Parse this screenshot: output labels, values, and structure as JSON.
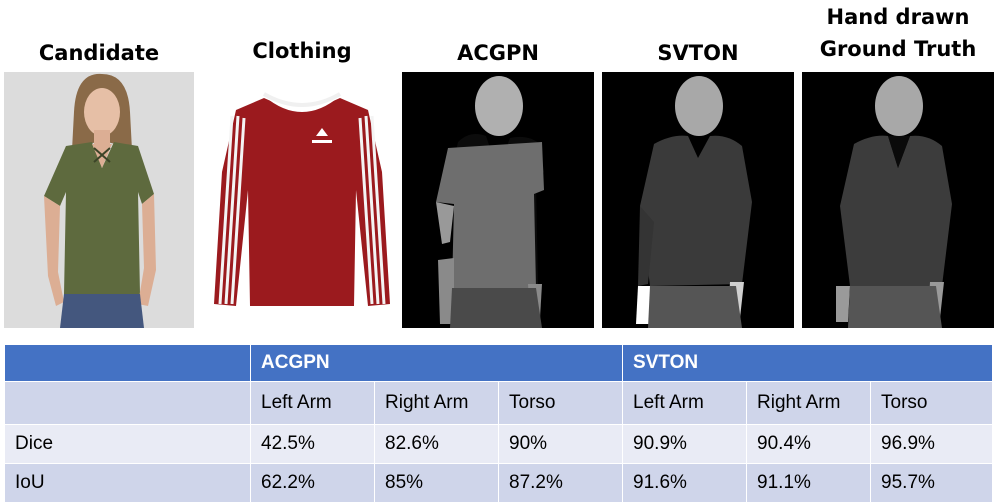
{
  "panels": {
    "candidate": "Candidate",
    "clothing": "Clothing",
    "acgpn": "ACGPN",
    "svton": "SVTON",
    "ground_truth_line1": "Hand drawn",
    "ground_truth_line2": "Ground Truth"
  },
  "table": {
    "groups": [
      "ACGPN",
      "SVTON"
    ],
    "columns": [
      "Left Arm",
      "Right Arm",
      "Torso",
      "Left Arm",
      "Right Arm",
      "Torso"
    ],
    "rows": [
      {
        "metric": "Dice",
        "values": [
          "42.5%",
          "82.6%",
          "90%",
          "90.9%",
          "90.4%",
          "96.9%"
        ]
      },
      {
        "metric": "IoU",
        "values": [
          "62.2%",
          "85%",
          "87.2%",
          "91.6%",
          "91.1%",
          "95.7%"
        ]
      }
    ]
  },
  "colors": {
    "header_bg": "#4472c4",
    "row_band_dark": "#cfd5ea",
    "row_band_light": "#e9ebf5",
    "shirt_green": "#5e6a3e",
    "sweater_red": "#9b1a1e"
  }
}
